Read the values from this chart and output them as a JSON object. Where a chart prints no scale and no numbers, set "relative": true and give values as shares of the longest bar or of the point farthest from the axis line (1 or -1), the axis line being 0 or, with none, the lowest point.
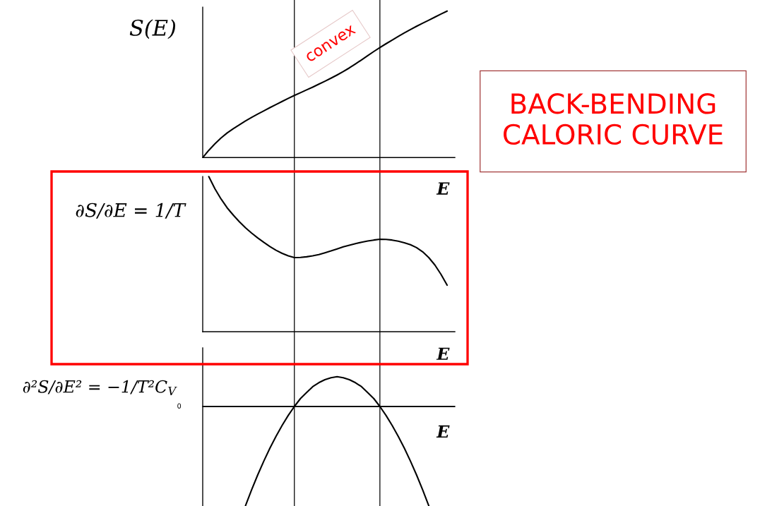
{
  "chart_data": [
    {
      "type": "line",
      "relative": true,
      "tick_labels": false,
      "ylabel": "S(E)",
      "xlabel": "E",
      "categories": [
        null,
        null,
        null,
        null,
        null,
        null,
        null,
        null,
        null,
        null,
        null,
        null,
        null,
        null,
        null,
        null,
        null,
        null,
        null,
        null,
        null,
        null,
        null,
        null,
        null,
        null,
        null,
        null,
        null,
        null,
        null,
        null,
        null,
        null,
        null,
        null,
        null,
        null,
        null,
        null,
        null
      ],
      "series": [
        {
          "color": "#000000",
          "values": [
            0,
            0.05,
            0.094,
            0.134,
            0.168,
            0.197,
            0.224,
            0.25,
            0.274,
            0.297,
            0.319,
            0.341,
            0.362,
            0.383,
            0.404,
            0.424,
            0.443,
            0.462,
            0.481,
            0.501,
            0.521,
            0.542,
            0.564,
            0.587,
            0.612,
            0.639,
            0.667,
            0.696,
            0.724,
            0.751,
            0.777,
            0.802,
            0.827,
            0.851,
            0.874,
            0.896,
            0.917,
            0.938,
            0.959,
            0.98,
            1
          ]
        }
      ],
      "annotations": [
        "convex",
        "BACK-BENDING\nCALORIC CURVE"
      ]
    },
    {
      "type": "line",
      "relative": true,
      "tick_labels": false,
      "ylabel": "∂S/∂E = 1/T",
      "xlabel": "E",
      "categories": [
        null,
        null,
        null,
        null,
        null,
        null,
        null,
        null,
        null,
        null,
        null,
        null,
        null,
        null,
        null,
        null,
        null,
        null,
        null,
        null,
        null,
        null,
        null,
        null,
        null,
        null,
        null,
        null,
        null,
        null,
        null,
        null,
        null,
        null,
        null,
        null,
        null,
        null,
        null,
        null,
        null
      ],
      "series": [
        {
          "color": "#000000",
          "values": [
            null,
            1,
            0.922,
            0.856,
            0.799,
            0.752,
            0.709,
            0.67,
            0.636,
            0.605,
            0.576,
            0.549,
            0.525,
            0.505,
            0.489,
            0.478,
            0.479,
            0.483,
            0.489,
            0.497,
            0.509,
            0.521,
            0.534,
            0.547,
            0.558,
            0.568,
            0.577,
            0.585,
            0.591,
            0.596,
            0.595,
            0.591,
            0.584,
            0.574,
            0.561,
            0.542,
            0.515,
            0.478,
            0.43,
            0.37,
            0.3
          ]
        }
      ]
    },
    {
      "type": "line",
      "relative": true,
      "tick_labels": false,
      "ylabel": "∂²S/∂E² = −1/T²C$_{V}$",
      "xlabel": "E",
      "categories": [
        null,
        null,
        null,
        null,
        null,
        null,
        null,
        null,
        null,
        null,
        null,
        null,
        null,
        null,
        null,
        null,
        null,
        null,
        null,
        null,
        null,
        null,
        null,
        null,
        null,
        null,
        null,
        null,
        null,
        null,
        null,
        null,
        null,
        null,
        null,
        null,
        null,
        null,
        null,
        null,
        null
      ],
      "series": [
        {
          "color": "#000000",
          "values": [
            null,
            null,
            null,
            null,
            null,
            null,
            null,
            -1,
            -0.84,
            -0.69,
            -0.55,
            -0.42,
            -0.3,
            -0.19,
            -0.09,
            0,
            0.08,
            0.14,
            0.2,
            0.24,
            0.27,
            0.29,
            0.3,
            0.29,
            0.27,
            0.24,
            0.2,
            0.14,
            0.08,
            0,
            -0.09,
            -0.19,
            -0.3,
            -0.42,
            -0.55,
            -0.69,
            -0.84,
            -1,
            null,
            null,
            null
          ]
        }
      ],
      "ref_lines": [
        {
          "axis": "y",
          "value": 0,
          "label": "0",
          "color": "#000000"
        }
      ]
    }
  ]
}
